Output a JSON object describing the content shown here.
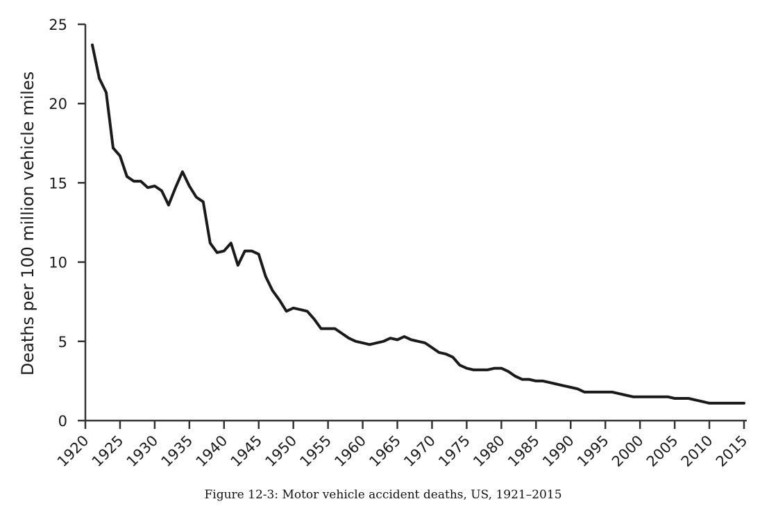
{
  "caption": "Figure 12-3: Motor vehicle accident deaths, US, 1921–2015",
  "chart_data": {
    "type": "line",
    "title": "",
    "xlabel": "",
    "ylabel": "Deaths per 100 million vehicle miles",
    "xlim": [
      1920,
      2015
    ],
    "ylim": [
      0,
      25
    ],
    "x_ticks": [
      "1920",
      "1925",
      "1930",
      "1935",
      "1940",
      "1945",
      "1950",
      "1955",
      "1960",
      "1965",
      "1970",
      "1975",
      "1980",
      "1985",
      "1990",
      "1995",
      "2000",
      "2005",
      "2010",
      "2015"
    ],
    "y_ticks": [
      "0",
      "5",
      "10",
      "15",
      "20",
      "25"
    ],
    "grid": false,
    "legend": "none",
    "line_color": "#1a1a1a",
    "series": [
      {
        "x": [
          1921,
          1922,
          1923,
          1924,
          1925,
          1926,
          1927,
          1928,
          1929,
          1930,
          1931,
          1932,
          1933,
          1934,
          1935,
          1936,
          1937,
          1938,
          1939,
          1940,
          1941,
          1942,
          1943,
          1944,
          1945,
          1946,
          1947,
          1948,
          1949,
          1950,
          1951,
          1952,
          1953,
          1954,
          1955,
          1956,
          1957,
          1958,
          1959,
          1960,
          1961,
          1962,
          1963,
          1964,
          1965,
          1966,
          1967,
          1968,
          1969,
          1970,
          1971,
          1972,
          1973,
          1974,
          1975,
          1976,
          1977,
          1978,
          1979,
          1980,
          1981,
          1982,
          1983,
          1984,
          1985,
          1986,
          1987,
          1988,
          1989,
          1990,
          1991,
          1992,
          1993,
          1994,
          1995,
          1996,
          1997,
          1998,
          1999,
          2000,
          2001,
          2002,
          2003,
          2004,
          2005,
          2006,
          2007,
          2008,
          2009,
          2010,
          2011,
          2012,
          2013,
          2014,
          2015
        ],
        "y": [
          23.7,
          21.6,
          20.7,
          17.2,
          16.7,
          15.4,
          15.1,
          15.1,
          14.7,
          14.8,
          14.5,
          13.6,
          14.7,
          15.7,
          14.8,
          14.1,
          13.8,
          11.2,
          10.6,
          10.7,
          11.2,
          9.8,
          10.7,
          10.7,
          10.5,
          9.1,
          8.2,
          7.6,
          6.9,
          7.1,
          7.0,
          6.9,
          6.4,
          5.8,
          5.8,
          5.8,
          5.5,
          5.2,
          5.0,
          4.9,
          4.8,
          4.9,
          5.0,
          5.2,
          5.1,
          5.3,
          5.1,
          5.0,
          4.9,
          4.6,
          4.3,
          4.2,
          4.0,
          3.5,
          3.3,
          3.2,
          3.2,
          3.2,
          3.3,
          3.3,
          3.1,
          2.8,
          2.6,
          2.6,
          2.5,
          2.5,
          2.4,
          2.3,
          2.2,
          2.1,
          2.0,
          1.8,
          1.8,
          1.8,
          1.8,
          1.8,
          1.7,
          1.6,
          1.5,
          1.5,
          1.5,
          1.5,
          1.5,
          1.5,
          1.4,
          1.4,
          1.4,
          1.3,
          1.2,
          1.1,
          1.1,
          1.1,
          1.1,
          1.1,
          1.1
        ]
      }
    ]
  }
}
